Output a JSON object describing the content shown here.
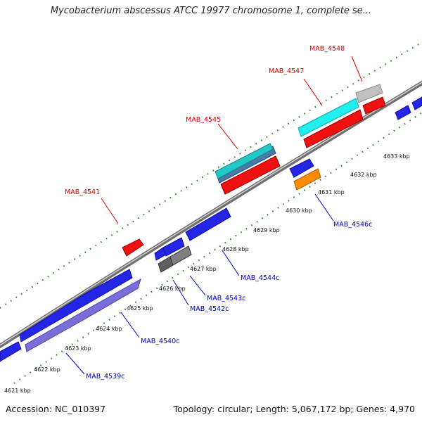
{
  "title": "Mycobacterium abscessus ATCC 19977 chromosome 1, complete se...",
  "footer": {
    "accession": "Accession: NC_010397",
    "info": "Topology: circular; Length: 5,067,172 bp; Genes: 4,970"
  },
  "colors": {
    "forward_label": "#dd0000",
    "reverse_label": "#0000cc",
    "backbone": "#8c8c8c",
    "tick": "#228822"
  },
  "gene_labels": [
    {
      "id": "lbl-mab4548",
      "text": "MAB_4548",
      "strand": "forward"
    },
    {
      "id": "lbl-mab4547",
      "text": "MAB_4547",
      "strand": "forward"
    },
    {
      "id": "lbl-mab4545",
      "text": "MAB_4545",
      "strand": "forward"
    },
    {
      "id": "lbl-mab4541",
      "text": "MAB_4541",
      "strand": "forward"
    },
    {
      "id": "lbl-mab4546c",
      "text": "MAB_4546c",
      "strand": "reverse"
    },
    {
      "id": "lbl-mab4544c",
      "text": "MAB_4544c",
      "strand": "reverse"
    },
    {
      "id": "lbl-mab4543c",
      "text": "MAB_4543c",
      "strand": "reverse"
    },
    {
      "id": "lbl-mab4542c",
      "text": "MAB_4542c",
      "strand": "reverse"
    },
    {
      "id": "lbl-mab4540c",
      "text": "MAB_4540c",
      "strand": "reverse"
    },
    {
      "id": "lbl-mab4539c",
      "text": "MAB_4539c",
      "strand": "reverse"
    }
  ],
  "ticks": [
    "4621 kbp",
    "4622 kbp",
    "4623 kbp",
    "4624 kbp",
    "4625 kbp",
    "4626 kbp",
    "4627 kbp",
    "4628 kbp",
    "4629 kbp",
    "4630 kbp",
    "4631 kbp",
    "4632 kbp",
    "4633 kbp"
  ]
}
